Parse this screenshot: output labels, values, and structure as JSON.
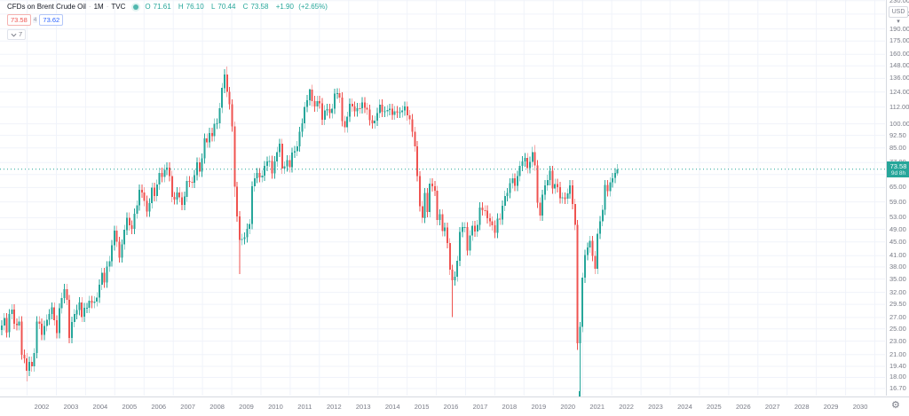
{
  "header": {
    "symbol": "CFDs on Brent Crude Oil",
    "separator": "·",
    "interval": "1M",
    "exchange": "TVC",
    "ohlc": {
      "o_label": "O",
      "o": "71.61",
      "h_label": "H",
      "h": "76.10",
      "l_label": "L",
      "l": "70.44",
      "c_label": "C",
      "c": "73.58",
      "change": "+1.90",
      "change_pct": "(+2.65%)"
    },
    "sell_price": "73.58",
    "spread": "4",
    "buy_price": "73.62",
    "collapsed_indicators_count": "7"
  },
  "price_axis": {
    "currency": "USD",
    "last_price": "73.58",
    "countdown": "9d 8h",
    "labels": [
      {
        "text": "230.00",
        "v": 230
      },
      {
        "text": "210.00",
        "v": 210
      },
      {
        "text": "190.00",
        "v": 190
      },
      {
        "text": "175.00",
        "v": 175
      },
      {
        "text": "160.00",
        "v": 160
      },
      {
        "text": "148.00",
        "v": 148
      },
      {
        "text": "136.00",
        "v": 136
      },
      {
        "text": "124.00",
        "v": 124
      },
      {
        "text": "112.00",
        "v": 112
      },
      {
        "text": "100.00",
        "v": 100
      },
      {
        "text": "92.50",
        "v": 92.5
      },
      {
        "text": "85.00",
        "v": 85
      },
      {
        "text": "77.00",
        "v": 77
      },
      {
        "text": "71.00",
        "v": 71,
        "hidden": true
      },
      {
        "text": "65.00",
        "v": 65
      },
      {
        "text": "59.00",
        "v": 59
      },
      {
        "text": "53.00",
        "v": 53
      },
      {
        "text": "49.00",
        "v": 49
      },
      {
        "text": "45.00",
        "v": 45
      },
      {
        "text": "41.00",
        "v": 41
      },
      {
        "text": "38.00",
        "v": 38
      },
      {
        "text": "35.00",
        "v": 35
      },
      {
        "text": "32.00",
        "v": 32
      },
      {
        "text": "29.50",
        "v": 29.5
      },
      {
        "text": "27.00",
        "v": 27
      },
      {
        "text": "25.00",
        "v": 25
      },
      {
        "text": "23.00",
        "v": 23
      },
      {
        "text": "21.00",
        "v": 21
      },
      {
        "text": "19.40",
        "v": 19.4
      },
      {
        "text": "18.00",
        "v": 18
      },
      {
        "text": "16.70",
        "v": 16.7
      }
    ]
  },
  "time_axis": {
    "years": [
      "2002",
      "2003",
      "2004",
      "2005",
      "2006",
      "2007",
      "2008",
      "2009",
      "2010",
      "2011",
      "2012",
      "2013",
      "2014",
      "2015",
      "2016",
      "2017",
      "2018",
      "2019",
      "2020",
      "2021",
      "2022",
      "2023",
      "2024",
      "2025",
      "2026",
      "2027",
      "2028",
      "2029",
      "2030"
    ]
  },
  "colors": {
    "up": "#26a69a",
    "down": "#ef5350",
    "buy": "#2962ff",
    "sell": "#ef5350",
    "grid": "#f0f3fa",
    "axis_text": "#787b86",
    "title_text": "#131722",
    "last_price_line": "#26a69a"
  },
  "chart_data": {
    "type": "candlestick",
    "title": "CFDs on Brent Crude Oil",
    "interval": "1M",
    "exchange": "TVC",
    "y_scale": "log",
    "grid": true,
    "x_visible_years": [
      2002,
      2030
    ],
    "y_visible_range": [
      15.9,
      231
    ],
    "start_month": "2001-01",
    "first_open": 24.8,
    "closes": [
      25.6,
      26.9,
      24.4,
      27.6,
      28.5,
      25.9,
      25.6,
      26.3,
      21.0,
      20.5,
      18.8,
      20.0,
      19.4,
      21.2,
      26.3,
      25.9,
      24.0,
      25.5,
      26.6,
      27.6,
      28.9,
      26.5,
      24.3,
      28.7,
      30.8,
      32.7,
      30.4,
      23.5,
      26.2,
      27.6,
      28.4,
      29.9,
      27.1,
      28.8,
      28.8,
      30.2,
      29.8,
      30.1,
      30.9,
      33.7,
      36.5,
      34.2,
      38.1,
      39.5,
      44.0,
      48.5,
      45.0,
      40.5,
      44.2,
      48.8,
      53.0,
      50.3,
      49.2,
      54.5,
      57.6,
      64.1,
      62.9,
      59.4,
      55.2,
      58.5,
      64.9,
      61.4,
      66.3,
      71.8,
      69.8,
      73.3,
      74.4,
      70.3,
      61.0,
      60.0,
      62.9,
      60.9,
      57.8,
      61.1,
      67.9,
      67.5,
      67.1,
      70.7,
      77.0,
      72.4,
      79.2,
      90.6,
      88.3,
      94.0,
      92.0,
      100.1,
      100.3,
      111.3,
      127.4,
      139.8,
      124.1,
      114.1,
      98.2,
      65.3,
      53.5,
      45.6,
      45.9,
      46.4,
      49.2,
      50.8,
      65.5,
      69.3,
      71.7,
      69.7,
      70.5,
      75.2,
      77.5,
      77.9,
      71.5,
      77.6,
      82.7,
      87.4,
      74.0,
      75.0,
      78.2,
      74.6,
      82.3,
      83.2,
      85.9,
      94.8,
      100.3,
      112.0,
      117.4,
      125.9,
      116.7,
      112.5,
      116.7,
      114.9,
      102.8,
      109.6,
      110.5,
      107.4,
      110.7,
      122.7,
      122.9,
      119.5,
      101.9,
      97.8,
      104.9,
      114.6,
      112.4,
      108.7,
      111.2,
      111.1,
      115.6,
      111.4,
      110.0,
      102.4,
      100.4,
      102.2,
      107.7,
      114.0,
      108.4,
      108.8,
      109.7,
      110.8,
      106.4,
      109.0,
      107.8,
      108.1,
      109.4,
      112.4,
      106.0,
      103.2,
      94.7,
      85.9,
      70.2,
      57.3,
      52.9,
      62.6,
      55.1,
      66.8,
      65.6,
      63.6,
      52.2,
      54.2,
      48.4,
      49.6,
      44.6,
      37.3,
      34.7,
      35.6,
      39.6,
      48.1,
      49.7,
      49.7,
      42.5,
      47.0,
      50.2,
      48.3,
      50.5,
      56.8,
      55.7,
      55.6,
      52.8,
      51.7,
      50.3,
      47.9,
      52.7,
      52.4,
      57.5,
      61.4,
      62.6,
      66.9,
      69.1,
      65.8,
      70.3,
      75.2,
      77.6,
      79.4,
      74.2,
      77.4,
      82.7,
      75.5,
      58.7,
      53.8,
      61.9,
      66.0,
      68.4,
      72.8,
      64.5,
      66.6,
      65.2,
      60.4,
      60.8,
      60.2,
      62.4,
      66.0,
      58.2,
      50.5,
      22.7,
      25.3,
      35.3,
      41.2,
      43.3,
      45.3,
      40.9,
      37.5,
      47.6,
      51.8,
      55.9,
      66.1,
      63.5,
      67.3,
      69.3,
      71.68,
      73.58
    ],
    "overrides": {
      "2001-11": {
        "l": 17.5
      },
      "2008-07": {
        "h": 147.5
      },
      "2008-10": {
        "l": 61.0
      },
      "2008-12": {
        "l": 36.2
      },
      "2011-04": {
        "h": 127.0
      },
      "2016-01": {
        "l": 27.1
      },
      "2018-10": {
        "h": 86.7
      },
      "2020-03": {
        "l": 21.7
      },
      "2020-04": {
        "l": 16.0
      },
      "2021-07": {
        "o": 71.61,
        "h": 76.1,
        "l": 70.44,
        "c": 73.58
      }
    },
    "last_bar": {
      "o": 71.61,
      "h": 76.1,
      "l": 70.44,
      "c": 73.58,
      "change": 1.9,
      "change_pct": 2.65
    }
  }
}
